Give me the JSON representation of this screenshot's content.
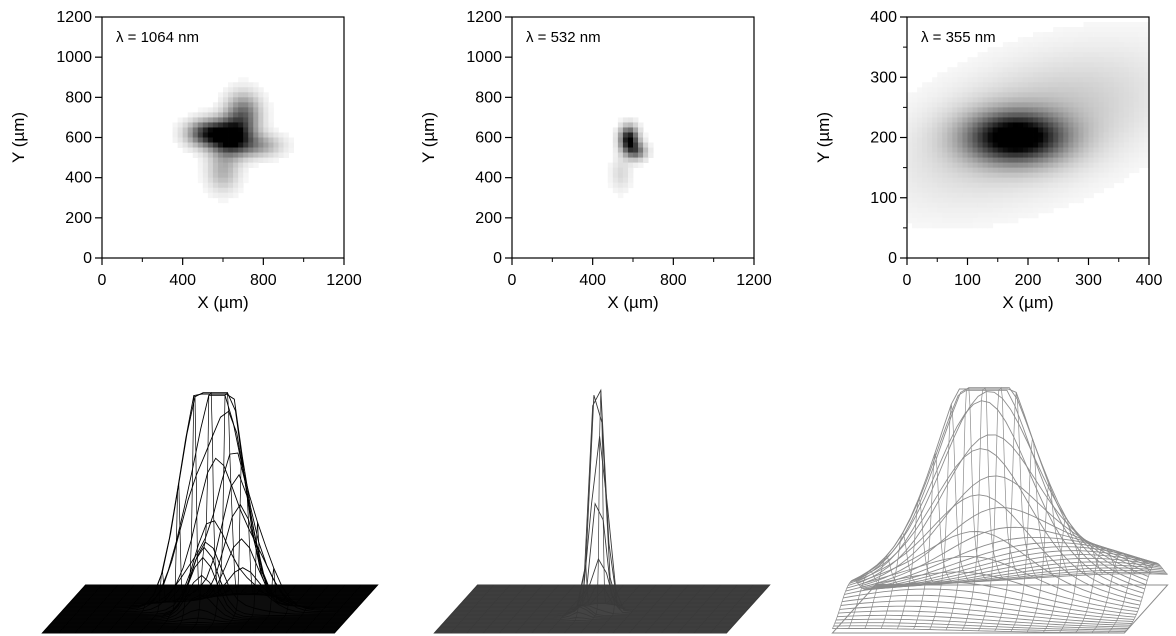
{
  "figure": {
    "colors": {
      "panel1_surface": "#000000",
      "panel2_surface": "#3a3a3a",
      "panel3_surface": "#8c8c8c",
      "axis": "#000000",
      "background": "#ffffff"
    }
  },
  "chart_data": [
    {
      "type": "heatmap",
      "annotation": "λ = 1064 nm",
      "xlabel": "X (µm)",
      "ylabel": "Y (µm)",
      "xlim": [
        0,
        1200
      ],
      "ylim": [
        0,
        1200
      ],
      "xticks": [
        "0",
        "400",
        "800",
        "1200"
      ],
      "yticks": [
        "0",
        "200",
        "400",
        "600",
        "800",
        "1000",
        "1200"
      ],
      "x_tick_values": [
        0,
        400,
        800,
        1200
      ],
      "y_tick_values": [
        0,
        200,
        400,
        600,
        800,
        1000,
        1200
      ],
      "blobs": [
        {
          "x": 640,
          "y": 600,
          "sx": 70,
          "sy": 60,
          "amp": 1.0,
          "angle": 0
        },
        {
          "x": 520,
          "y": 620,
          "sx": 70,
          "sy": 45,
          "amp": 0.75,
          "angle": 0
        },
        {
          "x": 700,
          "y": 720,
          "sx": 60,
          "sy": 70,
          "amp": 0.55,
          "angle": 0
        },
        {
          "x": 780,
          "y": 560,
          "sx": 80,
          "sy": 40,
          "amp": 0.35,
          "angle": 0
        },
        {
          "x": 600,
          "y": 430,
          "sx": 55,
          "sy": 70,
          "amp": 0.3,
          "angle": 0
        }
      ],
      "surface": {
        "sharpness": 1.0,
        "color": "#000000"
      }
    },
    {
      "type": "heatmap",
      "annotation": "λ = 532 nm",
      "xlabel": "X (µm)",
      "ylabel": "Y (µm)",
      "xlim": [
        0,
        1200
      ],
      "ylim": [
        0,
        1200
      ],
      "xticks": [
        "0",
        "400",
        "800",
        "1200"
      ],
      "yticks": [
        "0",
        "200",
        "400",
        "600",
        "800",
        "1000",
        "1200"
      ],
      "x_tick_values": [
        0,
        400,
        800,
        1200
      ],
      "y_tick_values": [
        0,
        200,
        400,
        600,
        800,
        1000,
        1200
      ],
      "blobs": [
        {
          "x": 580,
          "y": 590,
          "sx": 32,
          "sy": 45,
          "amp": 1.0,
          "angle": 0
        },
        {
          "x": 620,
          "y": 530,
          "sx": 35,
          "sy": 30,
          "amp": 0.5,
          "angle": 0
        },
        {
          "x": 540,
          "y": 420,
          "sx": 35,
          "sy": 60,
          "amp": 0.15,
          "angle": 0
        }
      ],
      "surface": {
        "sharpness": 1.6,
        "color": "#3a3a3a"
      }
    },
    {
      "type": "heatmap",
      "annotation": "λ = 355 nm",
      "xlabel": "X (µm)",
      "ylabel": "Y (µm)",
      "xlim": [
        0,
        400
      ],
      "ylim": [
        0,
        400
      ],
      "xticks": [
        "0",
        "100",
        "200",
        "300",
        "400"
      ],
      "yticks": [
        "0",
        "100",
        "200",
        "300",
        "400"
      ],
      "x_tick_values": [
        0,
        100,
        200,
        300,
        400
      ],
      "y_tick_values": [
        0,
        100,
        200,
        300,
        400
      ],
      "blobs": [
        {
          "x": 180,
          "y": 200,
          "sx": 55,
          "sy": 28,
          "amp": 1.0,
          "angle": 0
        },
        {
          "x": 210,
          "y": 220,
          "sx": 150,
          "sy": 70,
          "amp": 0.25,
          "angle": 20
        }
      ],
      "surface": {
        "sharpness": 0.8,
        "color": "#8c8c8c"
      }
    }
  ]
}
